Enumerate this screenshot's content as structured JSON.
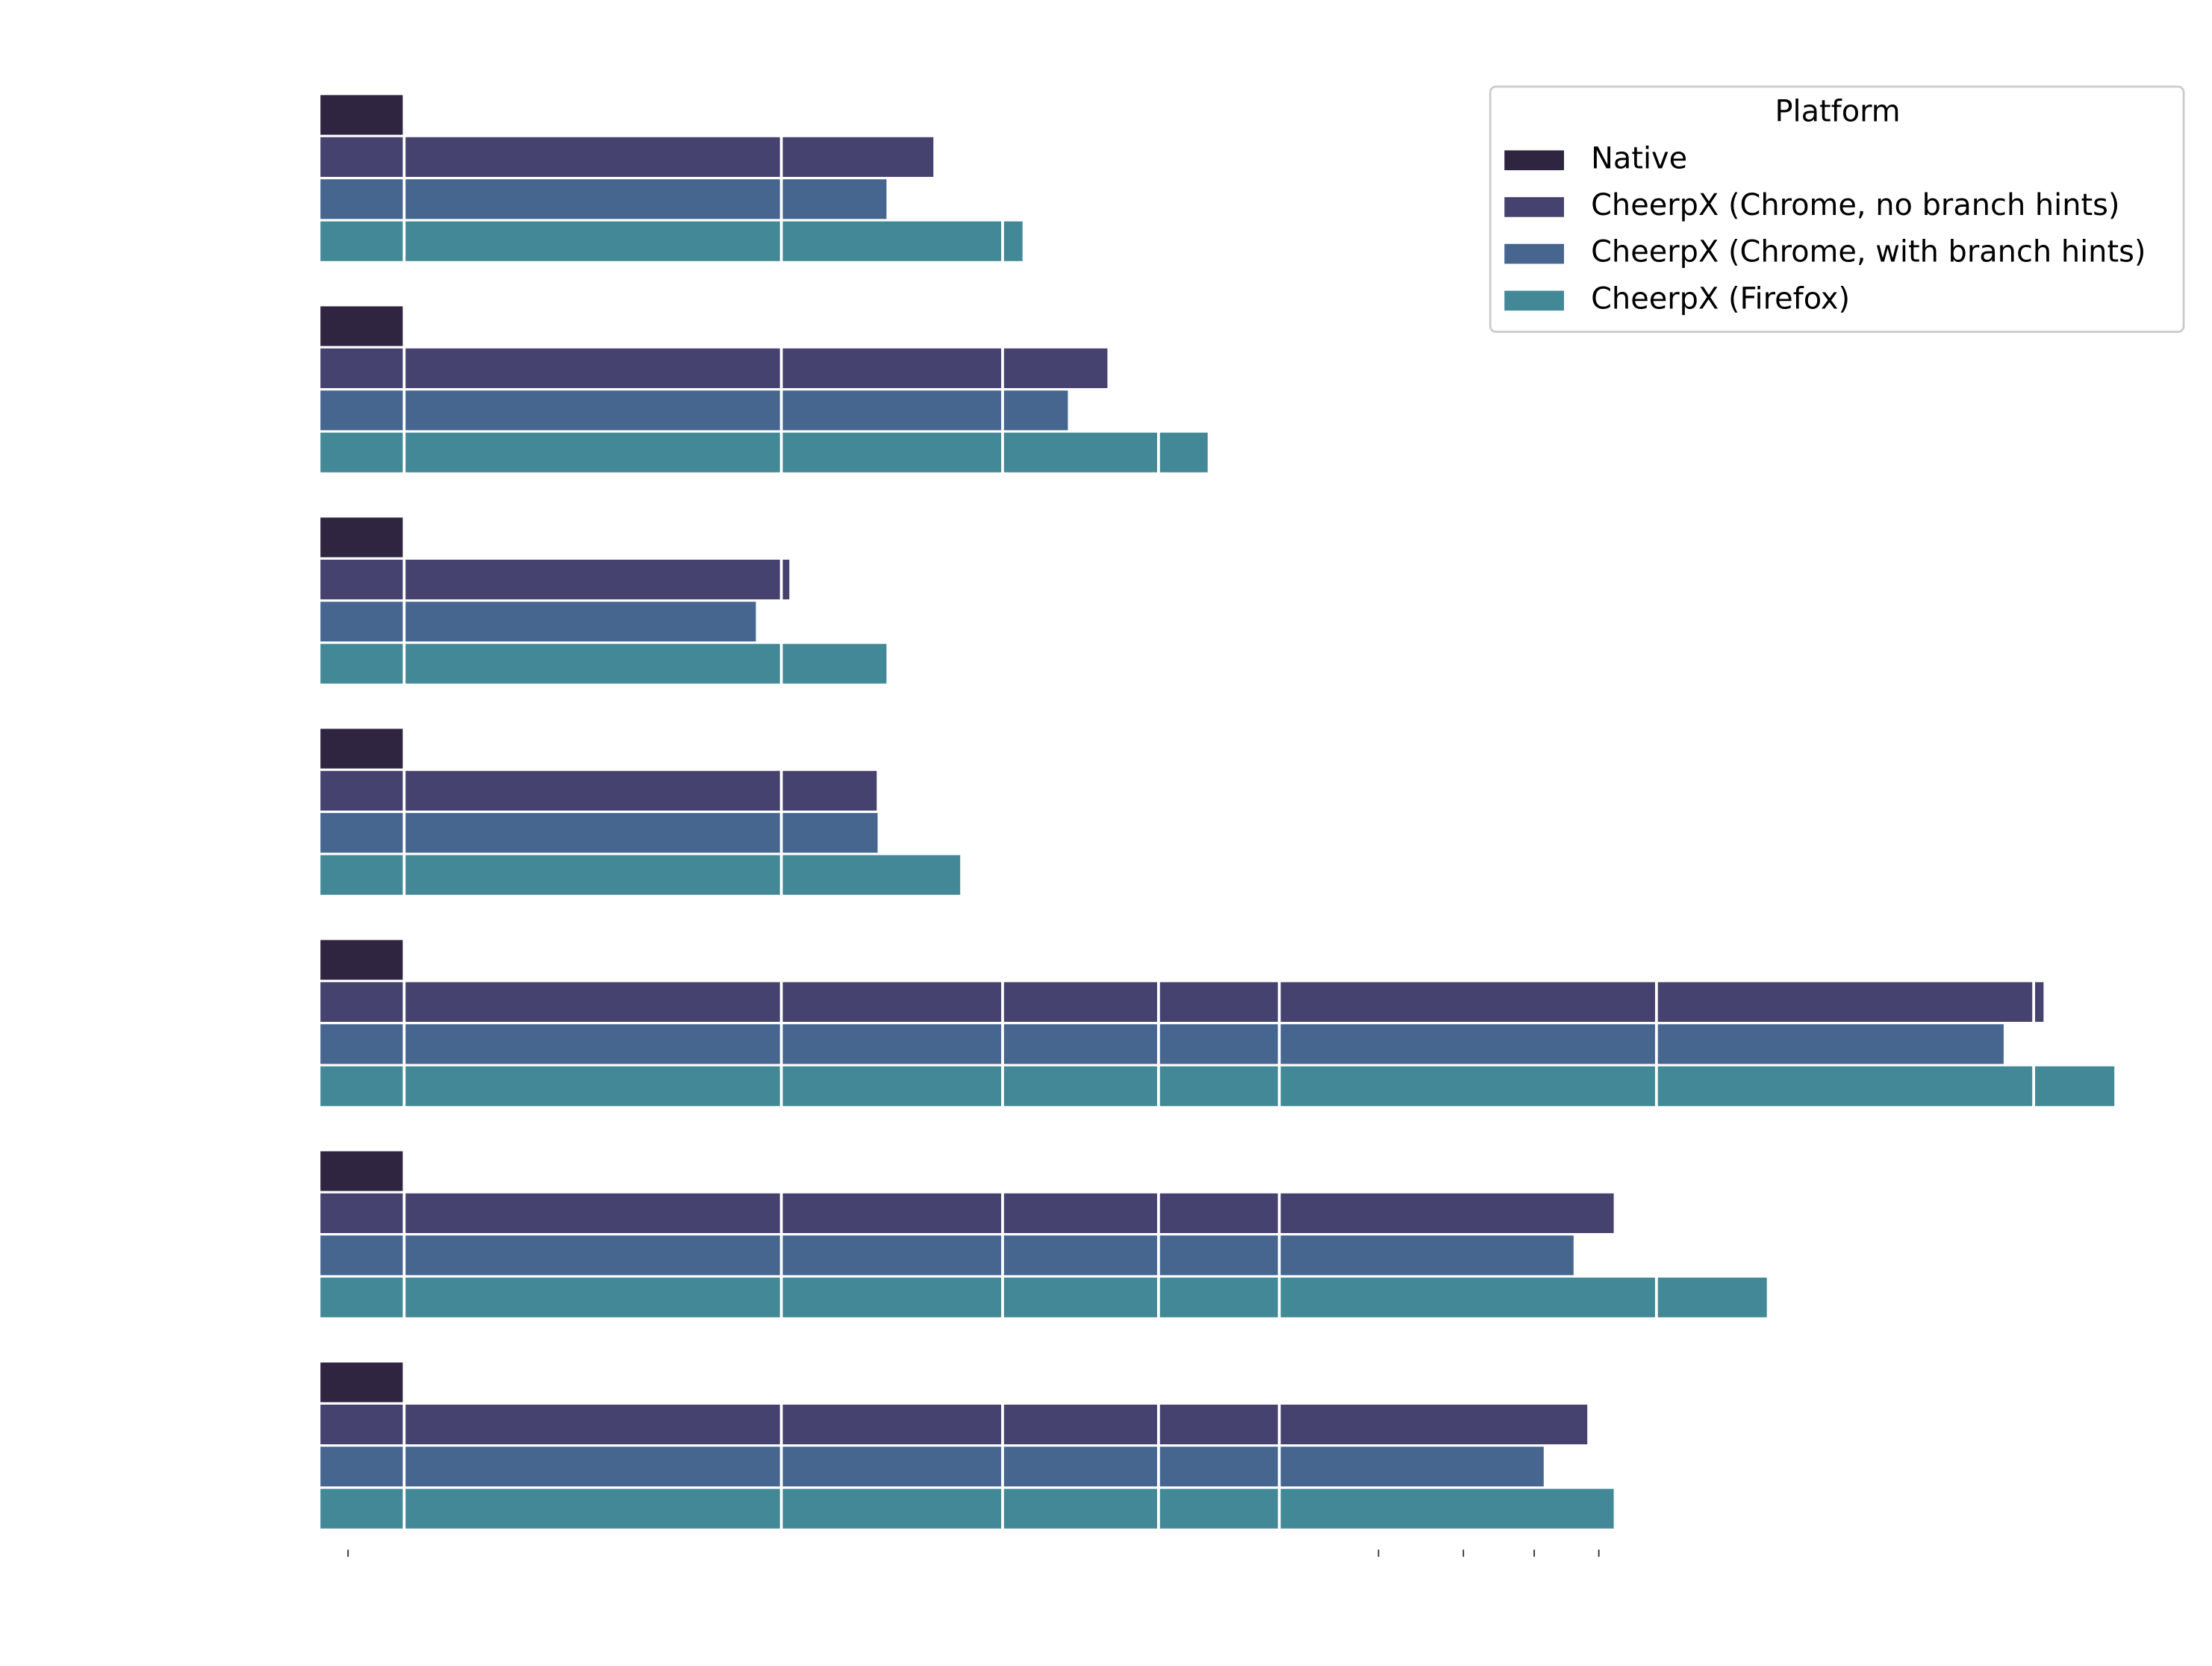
{
  "chart_data": {
    "type": "bar",
    "orientation": "horizontal",
    "xscale": "log",
    "xlim": [
      0.6,
      50000
    ],
    "xgrid": [
      1,
      10,
      38.6,
      100,
      209,
      2090,
      20900
    ],
    "xticks_minor": [
      0.71,
      383,
      643,
      991,
      1470
    ],
    "grid": true,
    "categories": [
      null,
      null,
      null,
      null,
      null,
      null,
      null
    ],
    "legend_title": "Platform",
    "legend_position": "upper right",
    "series": [
      {
        "name": "Native",
        "color": "#2f2540",
        "values": [
          1,
          1,
          1,
          1,
          1,
          1,
          1
        ]
      },
      {
        "name": "CheerpX (Chrome, no branch hints)",
        "color": "#46426f",
        "values": [
          25.3,
          73.2,
          10.5,
          17.9,
          22200,
          1610,
          1370
        ]
      },
      {
        "name": "CheerpX (Chrome, with branch hints)",
        "color": "#466690",
        "values": [
          19.0,
          57.5,
          8.56,
          18.0,
          17400,
          1260,
          1050
        ]
      },
      {
        "name": "CheerpX (Firefox)",
        "color": "#438896",
        "values": [
          43.6,
          135,
          19.0,
          29.8,
          34200,
          4100,
          1610
        ]
      }
    ]
  }
}
